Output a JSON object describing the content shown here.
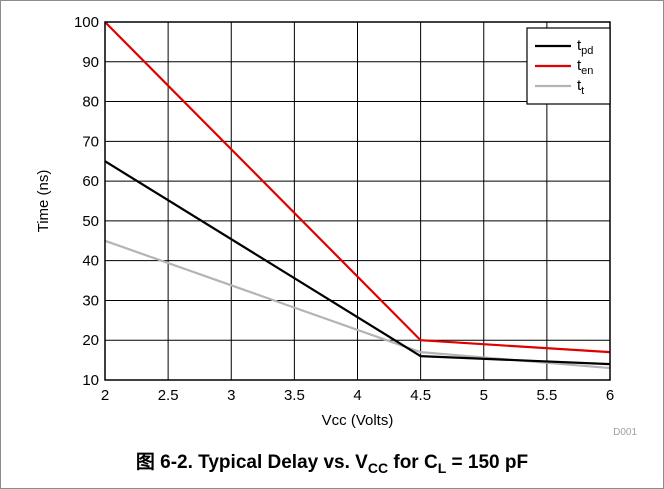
{
  "chart_data": {
    "type": "line",
    "title": "",
    "xlabel": "Vcc (Volts)",
    "ylabel": "Time (ns)",
    "xlim": [
      2,
      6
    ],
    "ylim": [
      10,
      100
    ],
    "x_ticks": [
      "2",
      "2.5",
      "3",
      "3.5",
      "4",
      "4.5",
      "5",
      "5.5",
      "6"
    ],
    "y_ticks": [
      "10",
      "20",
      "30",
      "40",
      "50",
      "60",
      "70",
      "80",
      "90",
      "100"
    ],
    "grid": true,
    "legend_position": "top-right",
    "series": [
      {
        "name": "t",
        "sub": "pd",
        "color": "#000000",
        "x": [
          2,
          4.5,
          6
        ],
        "y": [
          65,
          16,
          14
        ]
      },
      {
        "name": "t",
        "sub": "en",
        "color": "#e00000",
        "x": [
          2,
          4.5,
          6
        ],
        "y": [
          100,
          20,
          17
        ]
      },
      {
        "name": "t",
        "sub": "t",
        "color": "#b4b4b4",
        "x": [
          2,
          4.5,
          6
        ],
        "y": [
          45,
          17,
          13
        ]
      }
    ],
    "figure_code": "D001",
    "caption": {
      "prefix": "图 6-2. Typical Delay vs. V",
      "sub1": "CC",
      "mid": " for C",
      "sub2": "L",
      "suffix": " = 150 pF"
    }
  }
}
